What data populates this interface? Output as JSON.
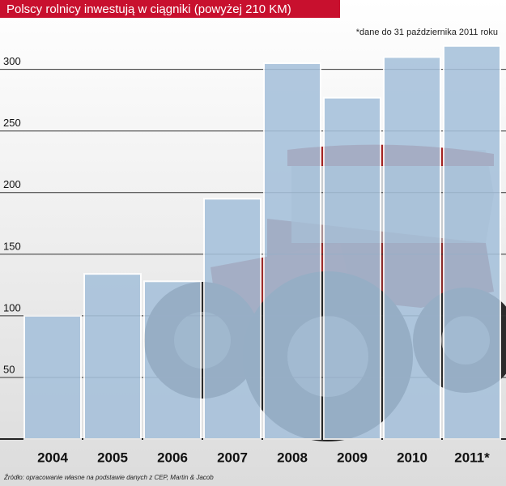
{
  "chart_data": {
    "type": "bar",
    "title": "Polscy rolnicy inwestują w ciągniki (powyżej 210 KM)",
    "note": "*dane do 31 października 2011 roku",
    "source": "Źródło: opracowanie własne na podstawie danych z CEP, Martin & Jacob",
    "categories": [
      "2004",
      "2005",
      "2006",
      "2007",
      "2008",
      "2009",
      "2010",
      "2011*"
    ],
    "values": [
      100,
      134,
      128,
      195,
      305,
      277,
      310,
      319
    ],
    "color": "#a6c1db",
    "ylim": [
      0,
      330
    ],
    "yticks": [
      50,
      100,
      150,
      200,
      250,
      300
    ],
    "grid": true
  }
}
